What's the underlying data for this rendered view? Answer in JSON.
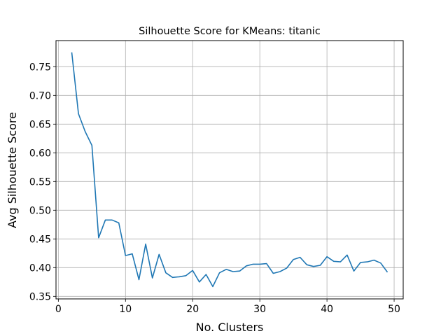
{
  "chart_data": {
    "type": "line",
    "title": "Silhouette Score for KMeans: titanic",
    "xlabel": "No. Clusters",
    "ylabel": "Avg Silhouette Score",
    "xlim": [
      -0.35,
      51.35
    ],
    "ylim": [
      0.3455,
      0.7955
    ],
    "xticks": [
      0,
      10,
      20,
      30,
      40,
      50
    ],
    "yticks": [
      0.35,
      0.4,
      0.45,
      0.5,
      0.55,
      0.6,
      0.65,
      0.7,
      0.75
    ],
    "xtick_labels": [
      "0",
      "10",
      "20",
      "30",
      "40",
      "50"
    ],
    "ytick_labels": [
      "0.35",
      "0.40",
      "0.45",
      "0.50",
      "0.55",
      "0.60",
      "0.65",
      "0.70",
      "0.75"
    ],
    "grid": true,
    "line_color": "#1f77b4",
    "series": [
      {
        "x": [
          2,
          3,
          4,
          5,
          6,
          7,
          8,
          9,
          10,
          11,
          12,
          13,
          14,
          15,
          16,
          17,
          18,
          19,
          20,
          21,
          22,
          23,
          24,
          25,
          26,
          27,
          28,
          29,
          30,
          31,
          32,
          33,
          34,
          35,
          36,
          37,
          38,
          39,
          40,
          41,
          42,
          43,
          44,
          45,
          46,
          47,
          48,
          49
        ],
        "values": [
          0.775,
          0.668,
          0.637,
          0.613,
          0.452,
          0.483,
          0.483,
          0.478,
          0.421,
          0.424,
          0.379,
          0.441,
          0.382,
          0.423,
          0.391,
          0.383,
          0.384,
          0.386,
          0.395,
          0.375,
          0.388,
          0.367,
          0.391,
          0.397,
          0.393,
          0.394,
          0.403,
          0.406,
          0.406,
          0.407,
          0.39,
          0.393,
          0.399,
          0.414,
          0.418,
          0.405,
          0.402,
          0.404,
          0.419,
          0.411,
          0.41,
          0.422,
          0.394,
          0.409,
          0.41,
          0.413,
          0.408,
          0.392
        ]
      }
    ]
  }
}
